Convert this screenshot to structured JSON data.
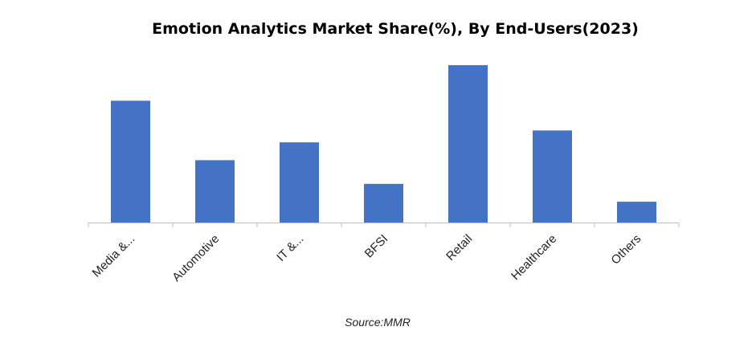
{
  "chart_data": {
    "type": "bar",
    "title": "Emotion Analytics Market Share(%), By End-Users(2023)",
    "categories": [
      "Media &...",
      "Automotive",
      "IT &...",
      "BFSI",
      "Retail",
      "Healthcare",
      "Others"
    ],
    "values": [
      20.5,
      10.5,
      13.5,
      6.5,
      26.5,
      15.5,
      3.5
    ],
    "ylim": [
      0,
      28
    ],
    "xlabel": "",
    "ylabel": "",
    "grid": false,
    "legend": "none",
    "source": "Source:MMR",
    "colors": {
      "bar": "#4472c4",
      "axis": "#bfbfbf"
    }
  }
}
